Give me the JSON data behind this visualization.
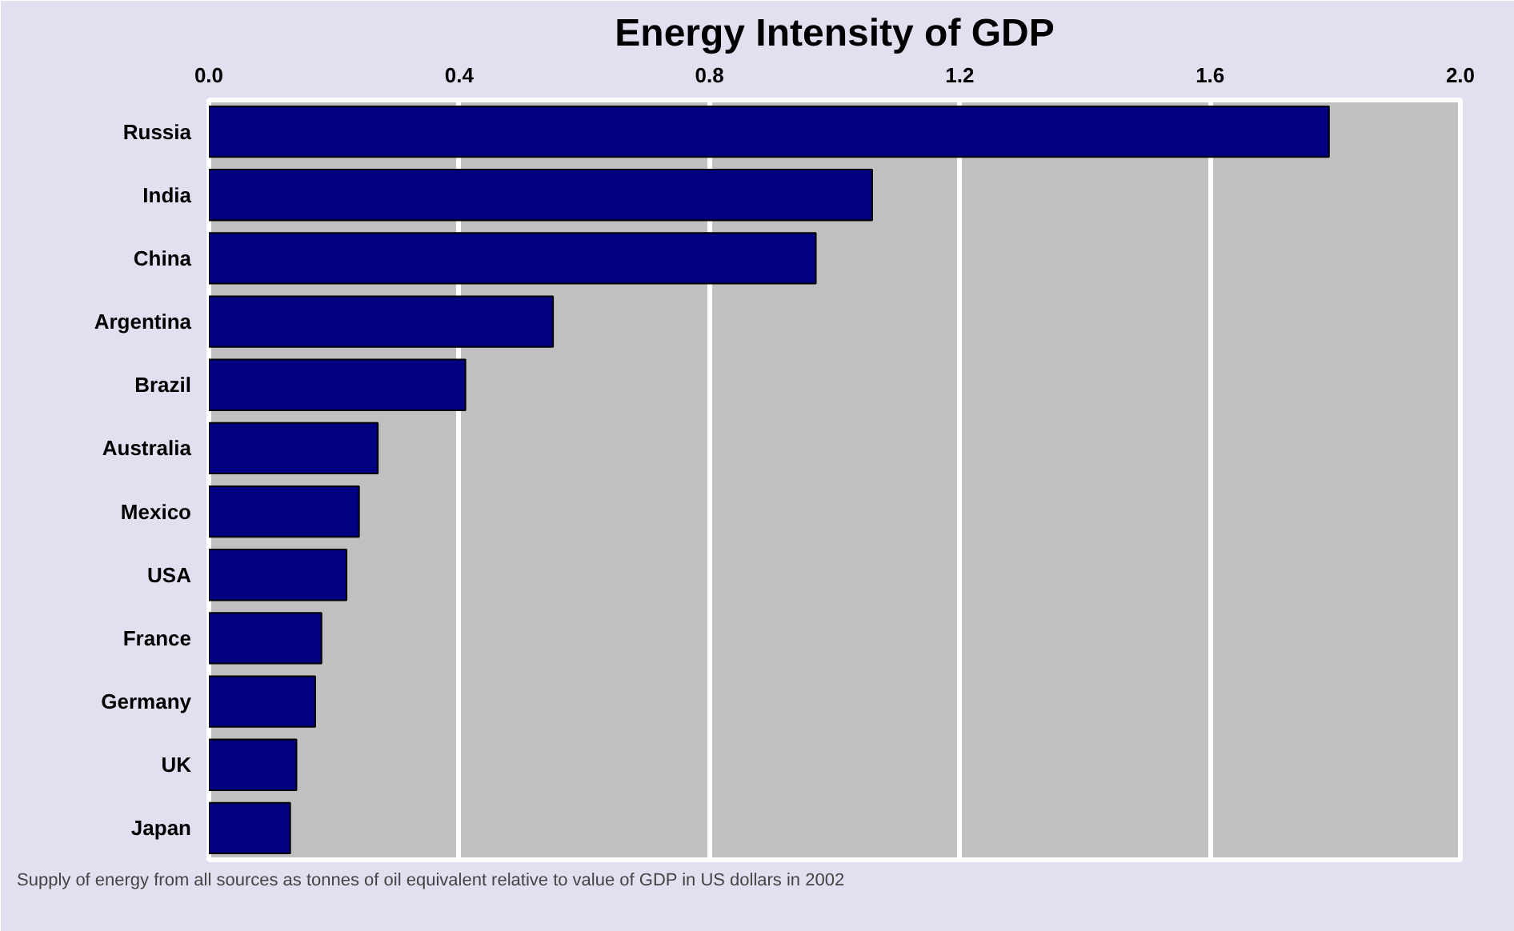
{
  "chart_data": {
    "type": "bar",
    "orientation": "horizontal",
    "title": "Energy Intensity of GDP",
    "categories": [
      "Russia",
      "India",
      "China",
      "Argentina",
      "Brazil",
      "Australia",
      "Mexico",
      "USA",
      "France",
      "Germany",
      "UK",
      "Japan"
    ],
    "values": [
      1.79,
      1.06,
      0.97,
      0.55,
      0.41,
      0.27,
      0.24,
      0.22,
      0.18,
      0.17,
      0.14,
      0.13
    ],
    "color": "#000080",
    "xlim": [
      0,
      2.0
    ],
    "xticks": [
      {
        "value": 0,
        "label": "0.0"
      },
      0.4,
      0.8,
      1.2,
      1.6,
      {
        "value": 2,
        "label": "2.0"
      }
    ],
    "grid": "x",
    "annotations": [
      "Supply of energy from all sources as tonnes of oil equivalent relative to value of GDP in US dollars in 2002"
    ]
  }
}
